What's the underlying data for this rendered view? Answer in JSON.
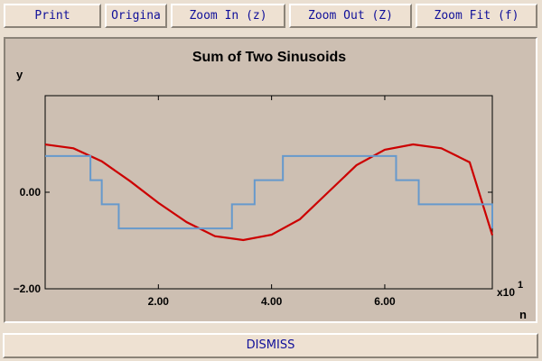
{
  "toolbar": {
    "print_label": "Print",
    "original_label": "Origina",
    "zoom_in_label": "Zoom In (z)",
    "zoom_out_label": "Zoom Out (Z)",
    "zoom_fit_label": "Zoom Fit (f)"
  },
  "dismiss_label": "DISMISS",
  "colors": {
    "window_bg": "#eadfd1",
    "plot_bg": "#cdbfb2",
    "button_text": "#10109a",
    "series_red": "#cc0000",
    "series_blue": "#6699cc"
  },
  "chart_data": {
    "type": "line",
    "title": "Sum of Two Sinusoids",
    "ylabel": "y",
    "xlabel": "n",
    "x_multiplier": "x10",
    "x_multiplier_exp": "1",
    "xlim": [
      0.0,
      7.9
    ],
    "ylim": [
      -2.0,
      2.0
    ],
    "x_ticks": [
      2.0,
      4.0,
      6.0
    ],
    "x_tick_labels": [
      "2.00",
      "4.00",
      "6.00"
    ],
    "y_ticks": [
      0.0,
      -2.0
    ],
    "y_tick_labels": [
      "0.00",
      "−2.00"
    ],
    "grid": false,
    "series": [
      {
        "color": "#cc0000",
        "style": "smooth",
        "x": [
          0.0,
          0.5,
          1.0,
          1.5,
          2.0,
          2.5,
          3.0,
          3.5,
          4.0,
          4.5,
          5.0,
          5.5,
          6.0,
          6.5,
          7.0,
          7.5,
          7.9
        ],
        "y": [
          0.99,
          0.91,
          0.64,
          0.23,
          -0.22,
          -0.62,
          -0.91,
          -0.99,
          -0.88,
          -0.56,
          0.0,
          0.56,
          0.88,
          0.99,
          0.91,
          0.62,
          -0.89
        ]
      },
      {
        "color": "#6699cc",
        "style": "step",
        "x": [
          0.0,
          0.8,
          1.0,
          1.3,
          1.7,
          3.3,
          3.7,
          4.2,
          5.8,
          6.2,
          6.6,
          7.9
        ],
        "y": [
          0.75,
          0.25,
          -0.25,
          -0.75,
          -0.75,
          -0.25,
          0.25,
          0.75,
          0.75,
          0.25,
          -0.25,
          -0.75
        ]
      }
    ]
  }
}
